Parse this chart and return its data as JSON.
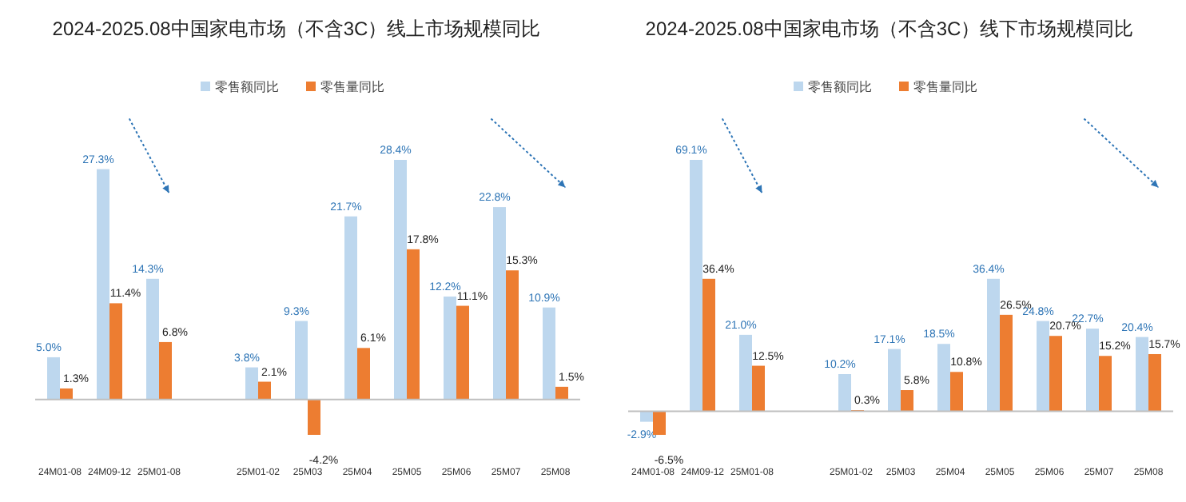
{
  "chart_data": [
    {
      "type": "bar",
      "title": "2024-2025.08中国家电市场（不含3C）线上市场规模同比",
      "categories": [
        "24M01-08",
        "24M09-12",
        "25M01-08",
        null,
        "25M01-02",
        "25M03",
        "25M04",
        "25M05",
        "25M06",
        "25M07",
        "25M08"
      ],
      "series": [
        {
          "name": "零售额同比",
          "color": "#bdd7ee",
          "values": [
            5.0,
            27.3,
            14.3,
            null,
            3.8,
            9.3,
            21.7,
            28.4,
            12.2,
            22.8,
            10.9
          ],
          "value_labels": [
            "5.0%",
            "27.3%",
            "14.3%",
            null,
            "3.8%",
            "9.3%",
            "21.7%",
            "28.4%",
            "12.2%",
            "22.8%",
            "10.9%"
          ]
        },
        {
          "name": "零售量同比",
          "color": "#ed7d31",
          "values": [
            1.3,
            11.4,
            6.8,
            null,
            2.1,
            -4.2,
            6.1,
            17.8,
            11.1,
            15.3,
            1.5
          ],
          "value_labels": [
            "1.3%",
            "11.4%",
            "6.8%",
            null,
            "2.1%",
            "-4.2%",
            "6.1%",
            "17.8%",
            "11.1%",
            "15.3%",
            "1.5%"
          ]
        }
      ],
      "legend": "top",
      "grid": false
    },
    {
      "type": "bar",
      "title": "2024-2025.08中国家电市场（不含3C）线下市场规模同比",
      "categories": [
        "24M01-08",
        "24M09-12",
        "25M01-08",
        null,
        "25M01-02",
        "25M03",
        "25M04",
        "25M05",
        "25M06",
        "25M07",
        "25M08"
      ],
      "series": [
        {
          "name": "零售额同比",
          "color": "#bdd7ee",
          "values": [
            -2.9,
            69.1,
            21.0,
            null,
            10.2,
            17.1,
            18.5,
            36.4,
            24.8,
            22.7,
            20.4
          ],
          "value_labels": [
            "-2.9%",
            "69.1%",
            "21.0%",
            null,
            "10.2%",
            "17.1%",
            "18.5%",
            "36.4%",
            "24.8%",
            "22.7%",
            "20.4%"
          ]
        },
        {
          "name": "零售量同比",
          "color": "#ed7d31",
          "values": [
            -6.5,
            36.4,
            12.5,
            null,
            0.3,
            5.8,
            10.8,
            26.5,
            20.7,
            15.2,
            15.7
          ],
          "value_labels": [
            "-6.5%",
            "36.4%",
            "12.5%",
            null,
            "0.3%",
            "5.8%",
            "10.8%",
            "26.5%",
            "20.7%",
            "15.2%",
            "15.7%"
          ]
        }
      ],
      "legend": "top",
      "grid": false
    }
  ]
}
